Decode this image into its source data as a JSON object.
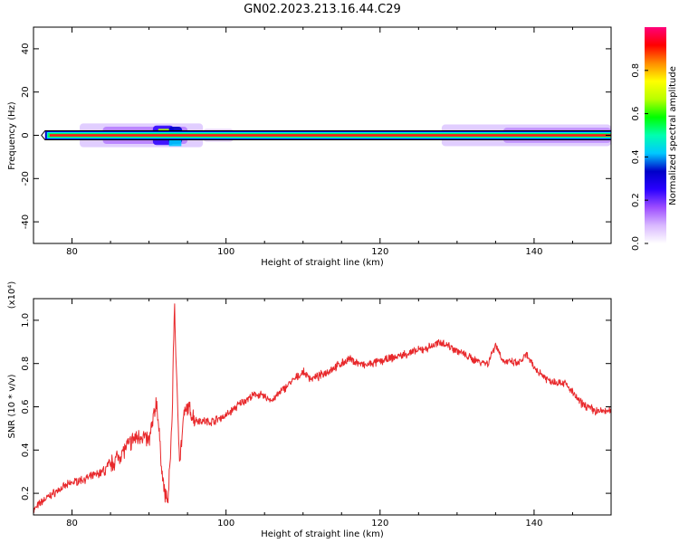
{
  "figure_title": "GN02.2023.213.16.44.C29",
  "colorbar": {
    "label": "Normalized spectral amplitude",
    "ticks": [
      "0.0",
      "0.2",
      "0.4",
      "0.6",
      "0.8"
    ],
    "range": [
      0,
      1
    ],
    "colormap": [
      "#ffffff",
      "#d9b8ff",
      "#9d4dff",
      "#2a00ff",
      "#0000c8",
      "#00c8ff",
      "#00ffb0",
      "#00ff00",
      "#b8ff00",
      "#ffff00",
      "#ff8c00",
      "#ff0000",
      "#ff007a"
    ]
  },
  "chart_data": [
    {
      "type": "heatmap",
      "title": "",
      "xlabel": "Height of straight line (km)",
      "ylabel": "Frequency (Hz)",
      "xlim": [
        75,
        150
      ],
      "ylim": [
        -50,
        50
      ],
      "xticks": [
        80,
        100,
        120,
        140
      ],
      "yticks": [
        -40,
        -20,
        0,
        20,
        40
      ],
      "track": {
        "x_start": 76.5,
        "x_end": 150,
        "center_frequency": 0,
        "description": "Narrow high-amplitude band at 0 Hz with broader low-amplitude spread between 82 and 96 km and above 130 km"
      }
    },
    {
      "type": "line",
      "title": "",
      "xlabel": "Height of straight line (km)",
      "ylabel": "SNR (10 * v/v)",
      "y_multiplier": "(x10⁴)",
      "xlim": [
        75,
        150
      ],
      "ylim": [
        0.1,
        1.1
      ],
      "xticks": [
        80,
        100,
        120,
        140
      ],
      "yticks": [
        0.2,
        0.4,
        0.6,
        0.8,
        1.0
      ],
      "line_color": "#e8282b",
      "series": [
        {
          "x": [
            75,
            76,
            78,
            80,
            82,
            84,
            85,
            86,
            87,
            88,
            89,
            90,
            91,
            91.5,
            92,
            92.5,
            93,
            93.3,
            93.6,
            94,
            94.5,
            95,
            96,
            98,
            100,
            102,
            104,
            106,
            108,
            110,
            111,
            112,
            114,
            116,
            118,
            120,
            122,
            124,
            126,
            128,
            130,
            132,
            134,
            135,
            136,
            138,
            139,
            140,
            142,
            144,
            146,
            148,
            150
          ],
          "values": [
            0.12,
            0.16,
            0.21,
            0.25,
            0.27,
            0.3,
            0.33,
            0.37,
            0.41,
            0.45,
            0.47,
            0.44,
            0.63,
            0.38,
            0.2,
            0.17,
            0.55,
            1.09,
            0.7,
            0.35,
            0.55,
            0.6,
            0.54,
            0.53,
            0.56,
            0.62,
            0.66,
            0.63,
            0.7,
            0.76,
            0.73,
            0.74,
            0.78,
            0.82,
            0.79,
            0.81,
            0.83,
            0.85,
            0.87,
            0.9,
            0.86,
            0.82,
            0.8,
            0.89,
            0.81,
            0.8,
            0.84,
            0.78,
            0.72,
            0.71,
            0.62,
            0.58,
            0.58
          ]
        }
      ]
    }
  ]
}
